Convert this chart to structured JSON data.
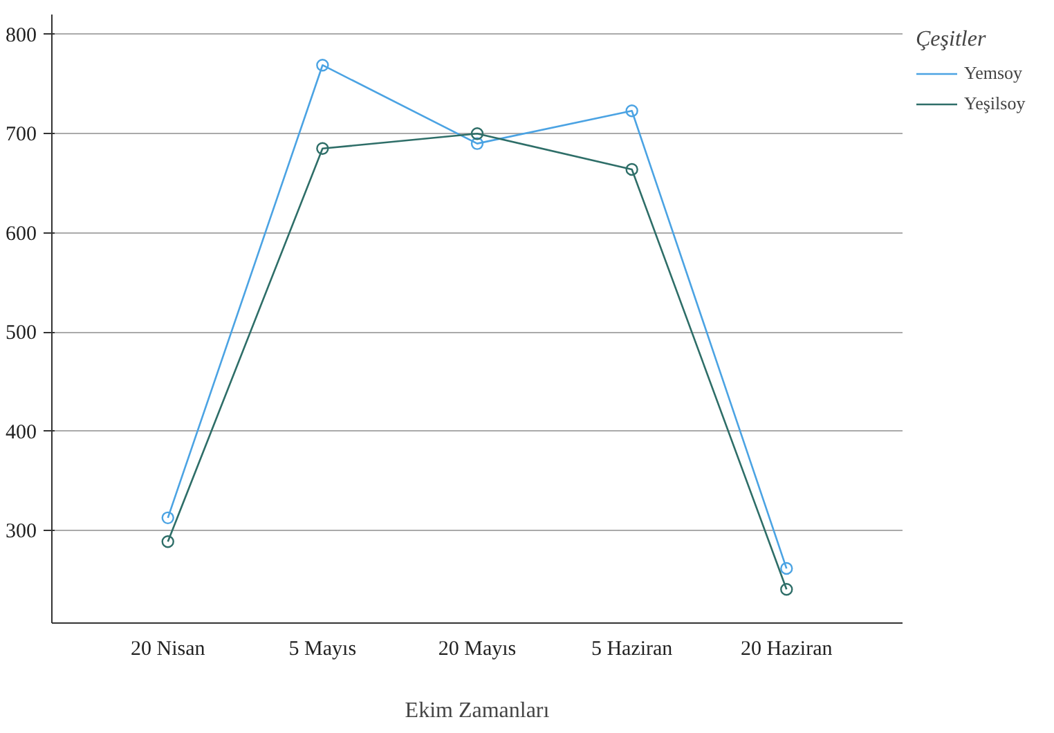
{
  "chart_data": {
    "type": "line",
    "xlabel": "Ekim Zamanları",
    "legend_title": "Çeşitler",
    "categories": [
      "20 Nisan",
      "5 Mayıs",
      "20 Mayıs",
      "5 Haziran",
      "20 Haziran"
    ],
    "series": [
      {
        "name": "Yemsoy",
        "color": "#4ba3e3",
        "values": [
          313,
          769,
          690,
          723,
          262
        ]
      },
      {
        "name": "Yeşilsoy",
        "color": "#2e6e68",
        "values": [
          289,
          685,
          700,
          664,
          241
        ]
      }
    ],
    "ylim": [
      207,
      820
    ],
    "yticks": [
      300,
      400,
      500,
      600,
      700,
      800
    ],
    "grid": "y",
    "legend": "top right",
    "marker": "circle",
    "line_style": "solid"
  }
}
